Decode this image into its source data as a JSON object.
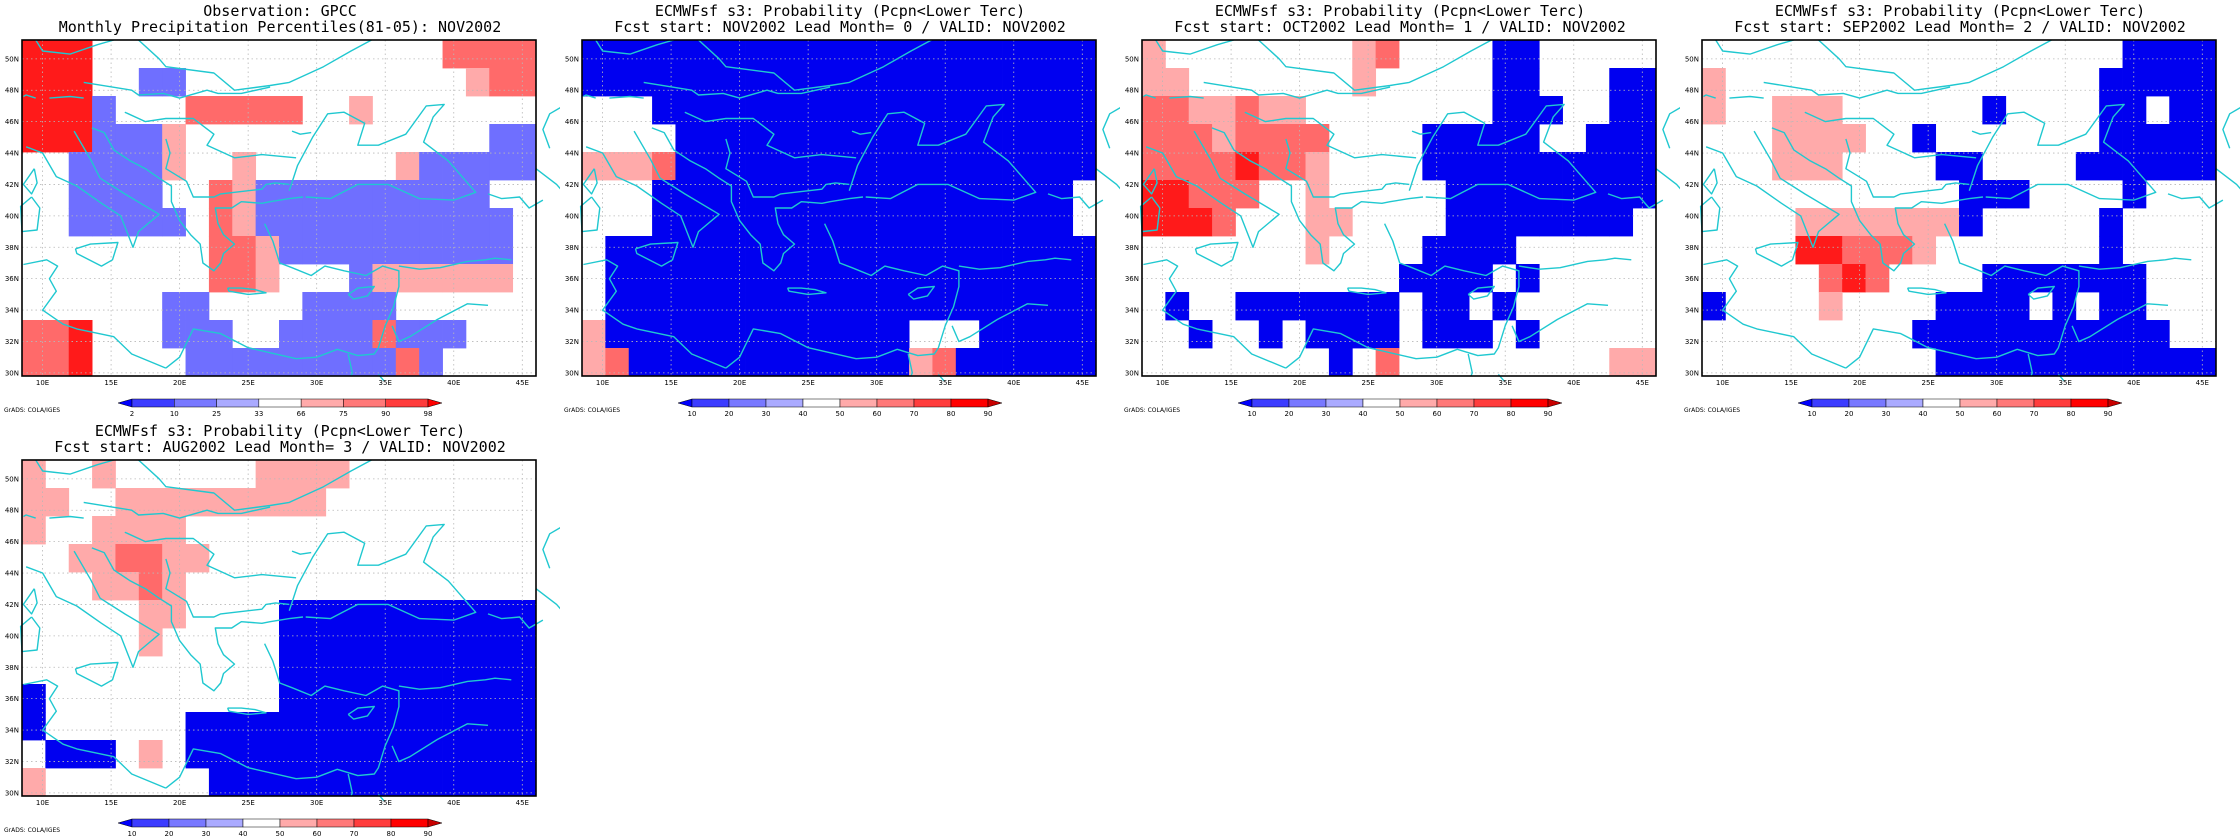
{
  "panels": [
    {
      "id": "obs",
      "title_line1": "Observation: GPCC",
      "title_line2": "Monthly Precipitation Percentiles(81-05): NOV2002",
      "colorbar_labels": [
        "2",
        "10",
        "25",
        "33",
        "66",
        "75",
        "90",
        "98"
      ],
      "colorbar_colors": [
        "#0000ff",
        "#3c3cff",
        "#7878ff",
        "#aaaaff",
        "#ffffff",
        "#ffaaaa",
        "#ff7878",
        "#ff3c3c",
        "#ff0000"
      ],
      "credit": "GrADS: COLA/IGES",
      "grid": [
        "rrrxxxxxxxxxxxxxxxssss",
        "rrrxxbbxxxxxxxxxxxxlss",
        "rrrbxxxsssssxxlxxxxxxx",
        "rrrbbblxxxxxxxxxxxxxbb",
        "xxbbbblxxlxxxxxxlbbbbb",
        "xxbbbbxxslbbbbbbbbbbxx",
        "xxbbbbbxslbbbbbbbbbbbx",
        "xxxxxxxxsslbbbbbbbbbbx",
        "xxxxxxxxsslxxxbllllllx",
        "xxxxxxbbxxxxbbbbxxxxxx",
        "ssrxxxbbbxxbbbbsbbbxxx",
        "ssrxxxxbbbbbbbbbsbxxxx"
      ]
    },
    {
      "id": "lead0",
      "title_line1": "ECMWFsf s3: Probability (Pcpn<Lower Terc)",
      "title_line2": "Fcst start: NOV2002  Lead Month= 0 / VALID: NOV2002",
      "colorbar_labels": [
        "10",
        "20",
        "30",
        "40",
        "50",
        "60",
        "70",
        "80",
        "90"
      ],
      "colorbar_colors": [
        "#0000ff",
        "#3c3cff",
        "#7878ff",
        "#aaaaff",
        "#ffffff",
        "#ffaaaa",
        "#ff7878",
        "#ff3c3c",
        "#ff0000",
        "#c80000"
      ],
      "credit": "GrADS: COLA/IGES",
      "grid": [
        "BBBBBBBBBBBBBBBBBBBBBB",
        "BBBBBBBBBBBBBBBBBBBBBB",
        "xxxBBBBBBBBBBBBBBBBBBB",
        "xxxxBBBBBBBBBBBBBBBBBB",
        "lllsBBBBBBBBBBBBBBBBBB",
        "xxxBBBBBBBBBBBBBBBBBBx",
        "xxxBBBBBBBBBBBBBBBBBBx",
        "xBBBBBBBBBBBBBBBBBBBBB",
        "xBBBBBBBBBBBBBBBBBBBBB",
        "xBBBBBBBBBBBBBBBBBBBBB",
        "lBBBBBBBBBBBBBxxxBBBBB",
        "lsBBBBBBBBBBBBlsBBBBBB"
      ]
    },
    {
      "id": "lead1",
      "title_line1": "ECMWFsf s3: Probability (Pcpn<Lower Terc)",
      "title_line2": "Fcst start: OCT2002  Lead Month= 1 / VALID: NOV2002",
      "colorbar_labels": [
        "10",
        "20",
        "30",
        "40",
        "50",
        "60",
        "70",
        "80",
        "90"
      ],
      "colorbar_colors": [
        "#0000ff",
        "#3c3cff",
        "#7878ff",
        "#aaaaff",
        "#ffffff",
        "#ffaaaa",
        "#ff7878",
        "#ff3c3c",
        "#ff0000",
        "#c80000"
      ],
      "credit": "GrADS: COLA/IGES",
      "grid": [
        "lxxxxxxxxlsxxxxBBxxxxx",
        "llxxxxxxxlxxxxxBBxxxBB",
        "ssllsllxxxxxxxxBBBxxBB",
        "ssslssssxxxxBBBBBxxBBB",
        "ssssrsslxxxxBBBBBBBBBB",
        "rrsssxxlxxxxxBBBBBBBBB",
        "rrrsxxxllxxxxBBBBBBBBx",
        "xxxxxxxlxxxxBBBBxxxxxx",
        "xxxxxxxxxxxBBBBxBxxxxx",
        "xBxxBBBBBBBxBBxBxxxxxx",
        "xxBxxBxBBBBxBBBxBxxxxx",
        "xxxxxxxxBxsxxxxxxxxxll"
      ]
    },
    {
      "id": "lead2",
      "title_line1": "ECMWFsf s3: Probability (Pcpn<Lower Terc)",
      "title_line2": "Fcst start: SEP2002  Lead Month= 2 / VALID: NOV2002",
      "colorbar_labels": [
        "10",
        "20",
        "30",
        "40",
        "50",
        "60",
        "70",
        "80",
        "90"
      ],
      "colorbar_colors": [
        "#0000ff",
        "#3c3cff",
        "#7878ff",
        "#aaaaff",
        "#ffffff",
        "#ffaaaa",
        "#ff7878",
        "#ff3c3c",
        "#ff0000",
        "#c80000"
      ],
      "credit": "GrADS: COLA/IGES",
      "grid": [
        "xxxxxxxxxxxxxxxxxxBBBB",
        "lxxxxxxxxxxxxxxxxBBBBB",
        "lxxlllxxxxxxBxxxxBBxBB",
        "xxxllllxxBxxxxxxxBBBBB",
        "xxxlllxxxxBBxxxxBBBBBB",
        "xxxxxxxxxxxBBBxxxxBxxx",
        "xxxxlllllllBxxxxxBxxxx",
        "xxxxrrssslxxxxxxxBxxxx",
        "xxxxxsrsxxxxBBBBBBBxxx",
        "BxxxxlxxxxBBBBxBxBBxxx",
        "xxxxxxxxxBBBBBBBBBBBxx",
        "xxxxxxxxxxBBBBBBBBBBBB"
      ]
    },
    {
      "id": "lead3",
      "title_line1": "ECMWFsf s3: Probability (Pcpn<Lower Terc)",
      "title_line2": "Fcst start: AUG2002  Lead Month= 3 / VALID: NOV2002",
      "colorbar_labels": [
        "10",
        "20",
        "30",
        "40",
        "50",
        "60",
        "70",
        "80",
        "90"
      ],
      "colorbar_colors": [
        "#0000ff",
        "#3c3cff",
        "#7878ff",
        "#aaaaff",
        "#ffffff",
        "#ffaaaa",
        "#ff7878",
        "#ff3c3c",
        "#ff0000",
        "#c80000"
      ],
      "credit": "GrADS: COLA/IGES",
      "grid": [
        "lxxlxxxxxxllllxxxxxxxx",
        "llxxlllllllllxxxxxxxxx",
        "lxxllllxxxxxxxxxxxxxxx",
        "xxllssllxxxxxxxxxxxxxx",
        "xxxllslxxxxxxxxxxxxxxx",
        "xxxxxllxxxxBBBBBBBBBBB",
        "xxxxxlxxxxxBBBBBBBBBBB",
        "xxxxxxxxxxxBBBBBBBBBBB",
        "BxxxxxxxxxxBBBBBBBBBBB",
        "BxxxxxxBBBBBBBBBBBBBBB",
        "xBBBxlxBBBBBBBBBBBBBBB",
        "lxxxxxxxBBBBBBBBBBBBBB"
      ]
    }
  ],
  "axes": {
    "lon_ticks": [
      "10E",
      "15E",
      "20E",
      "25E",
      "30E",
      "35E",
      "40E",
      "45E"
    ],
    "lat_ticks": [
      "30N",
      "32N",
      "34N",
      "36N",
      "38N",
      "40N",
      "42N",
      "44N",
      "46N",
      "48N",
      "50N"
    ]
  },
  "shade_colors": {
    "x": "#ffffff",
    "b": "#6f6fff",
    "B": "#0000f0",
    "l": "#ffaaaa",
    "s": "#ff6a6a",
    "r": "#ff1a1a"
  },
  "coast_color": "#20c8d0"
}
